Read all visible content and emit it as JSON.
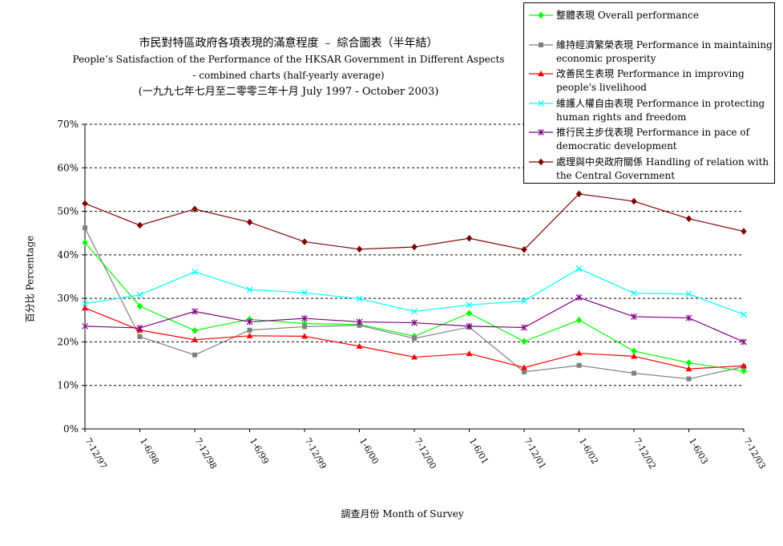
{
  "chart_data": {
    "type": "line",
    "title": "市民對特區政府各項表現的滿意程度 ﹣ 綜合圖表（半年結）",
    "subtitle_lines": [
      "People’s Satisfaction of the Performance of the HKSAR Government in Different Aspects",
      "- combined charts  (half-yearly average)",
      "(一九九七年七月至二零零三年十月 July 1997 - October 2003)"
    ],
    "xlabel": "調查月份 Month of Survey",
    "ylabel": "百分比 Percentage",
    "ylim": [
      0,
      70
    ],
    "yticks": [
      "0%",
      "10%",
      "20%",
      "30%",
      "40%",
      "50%",
      "60%",
      "70%"
    ],
    "grid": true,
    "legend_position": "top-right",
    "categories": [
      "7-12/97",
      "1-6/98",
      "7-12/98",
      "1-6/99",
      "7-12/99",
      "1-6/00",
      "7-12/00",
      "1-6/01",
      "7-12/01",
      "1-6/02",
      "7-12/02",
      "1-6/03",
      "7-12/03"
    ],
    "series": [
      {
        "name": "整體表現 Overall performance",
        "color": "#00ff00",
        "marker": "diamond",
        "values": [
          42.8,
          28.2,
          22.6,
          25.2,
          24.2,
          24.0,
          21.3,
          26.6,
          20.1,
          25.0,
          17.9,
          15.2,
          13.3
        ]
      },
      {
        "name": "維持經濟繁榮表現 Performance in maintaining economic prosperity",
        "color": "#808080",
        "marker": "square",
        "values": [
          46.2,
          21.2,
          17.0,
          22.7,
          23.5,
          23.8,
          20.8,
          23.4,
          13.1,
          14.6,
          12.8,
          11.5,
          14.3
        ]
      },
      {
        "name": "改善民生表現 Performance in improving people's livelihood",
        "color": "#ff0000",
        "marker": "triangle",
        "values": [
          27.8,
          22.7,
          20.5,
          21.4,
          21.3,
          19.0,
          16.5,
          17.3,
          14.1,
          17.4,
          16.7,
          13.8,
          14.5
        ]
      },
      {
        "name": "維護人權自由表現 Performance in protecting human rights and freedom",
        "color": "#00ffff",
        "marker": "x",
        "values": [
          28.8,
          30.8,
          36.1,
          32.0,
          31.3,
          29.9,
          27.0,
          28.5,
          29.4,
          36.8,
          31.2,
          31.0,
          26.3
        ]
      },
      {
        "name": "推行民主步伐表現 Performance in pace of democratic development",
        "color": "#800080",
        "marker": "star",
        "values": [
          23.6,
          23.2,
          27.0,
          24.6,
          25.4,
          24.6,
          24.4,
          23.6,
          23.3,
          30.2,
          25.8,
          25.5,
          20.0
        ]
      },
      {
        "name": "處理與中央政府關係 Handling of relation with the Central Government",
        "color": "#800000",
        "marker": "diamond",
        "values": [
          51.8,
          46.8,
          50.5,
          47.5,
          43.0,
          41.3,
          41.8,
          43.8,
          41.2,
          54.0,
          52.3,
          48.3,
          45.4
        ]
      }
    ]
  }
}
